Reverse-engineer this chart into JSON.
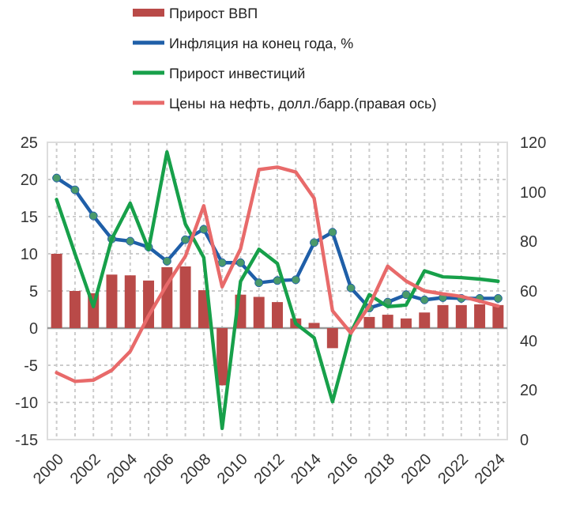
{
  "chart_data": {
    "type": "line",
    "x": [
      2000,
      2001,
      2002,
      2003,
      2004,
      2005,
      2006,
      2007,
      2008,
      2009,
      2010,
      2011,
      2012,
      2013,
      2014,
      2015,
      2016,
      2017,
      2018,
      2019,
      2020,
      2021,
      2022,
      2023,
      2024
    ],
    "series": [
      {
        "name": "Прирост ВВП",
        "type": "bar",
        "color": "#b94a48",
        "values": [
          10,
          5.0,
          4.7,
          7.2,
          7.1,
          6.4,
          8.2,
          8.3,
          5.1,
          -7.7,
          4.5,
          4.2,
          3.5,
          1.3,
          0.7,
          -2.7,
          null,
          1.5,
          1.8,
          1.3,
          2.1,
          3.1,
          3.1,
          3.2,
          3.1
        ]
      },
      {
        "name": "Инфляция на конец года, %",
        "marker": "circle",
        "color": "#1f5fa8",
        "values": [
          20.2,
          18.6,
          15.1,
          12.0,
          11.7,
          10.9,
          9.0,
          11.9,
          13.3,
          8.8,
          8.8,
          6.1,
          6.4,
          6.5,
          11.5,
          12.9,
          5.4,
          2.7,
          3.5,
          4.5,
          3.8,
          4.1,
          4.0,
          4.0,
          4.0
        ]
      },
      {
        "name": "Прирост инвестиций",
        "marker": "none",
        "color": "#17a04a",
        "values": [
          17.3,
          10.0,
          2.9,
          12.0,
          16.8,
          10.6,
          23.7,
          14.0,
          9.5,
          -13.5,
          6.3,
          10.6,
          8.7,
          0.6,
          -1.3,
          -9.9,
          -0.6,
          4.5,
          2.9,
          3.1,
          7.7,
          6.9,
          6.8,
          6.6,
          6.3
        ]
      },
      {
        "name": "Цены на нефть, долл./барр.(правая ось)",
        "marker": "none",
        "axis": "y2",
        "color": "#e86a6a",
        "values": [
          27,
          23.5,
          24,
          28,
          35.6,
          50,
          62.6,
          74,
          94.4,
          61.7,
          77,
          109,
          110,
          108,
          97.4,
          52,
          43,
          54,
          70,
          64,
          60,
          58.8,
          57.8,
          55.9,
          53.9
        ]
      }
    ],
    "xlim": [
      1999.5,
      2024.5
    ],
    "xticks": [
      2000,
      {
        "value": 2001,
        "label": null
      },
      2002,
      {
        "value": 2003,
        "label": null
      },
      2004,
      {
        "value": 2005,
        "label": null
      },
      2006,
      {
        "value": 2007,
        "label": null
      },
      2008,
      {
        "value": 2009,
        "label": null
      },
      2010,
      {
        "value": 2011,
        "label": null
      },
      2012,
      {
        "value": 2013,
        "label": null
      },
      2014,
      {
        "value": 2015,
        "label": null
      },
      2016,
      {
        "value": 2017,
        "label": null
      },
      2018,
      {
        "value": 2019,
        "label": null
      },
      2020,
      {
        "value": 2021,
        "label": null
      },
      2022,
      {
        "value": 2023,
        "label": null
      },
      2024
    ],
    "ylim": [
      -15,
      25
    ],
    "yticks": [
      -15,
      -10,
      -5,
      0,
      5,
      10,
      15,
      20,
      25
    ],
    "y2lim": [
      0,
      120
    ],
    "y2ticks": [
      0,
      20,
      40,
      60,
      80,
      100,
      120
    ],
    "ref_lines": [
      {
        "axis": "y",
        "value": 0,
        "color": "#999999"
      }
    ],
    "grid": true,
    "legend": "top",
    "line_style": "solid"
  }
}
